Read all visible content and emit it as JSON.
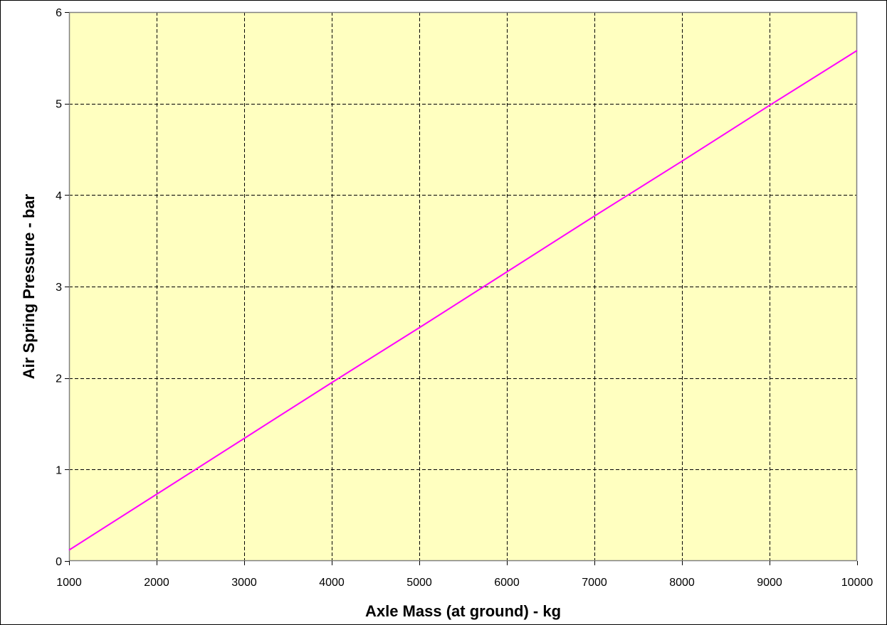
{
  "chart_data": {
    "type": "line",
    "title": "",
    "xlabel": "Axle Mass (at ground) - kg",
    "ylabel": "Air Spring Pressure - bar",
    "xlim": [
      1000,
      10000
    ],
    "ylim": [
      0,
      6
    ],
    "x_ticks": [
      1000,
      2000,
      3000,
      4000,
      5000,
      6000,
      7000,
      8000,
      9000,
      10000
    ],
    "y_ticks": [
      0,
      1,
      2,
      3,
      4,
      5,
      6
    ],
    "x_tick_labels": [
      "1000",
      "2000",
      "3000",
      "4000",
      "5000",
      "6000",
      "7000",
      "8000",
      "9000",
      "10000"
    ],
    "y_tick_labels": [
      "0",
      "1",
      "2",
      "3",
      "4",
      "5",
      "6"
    ],
    "grid": true,
    "grid_style": "dashed",
    "legend": "none",
    "series": [
      {
        "color": "#ff00ff",
        "x": [
          1000,
          2000,
          3000,
          4000,
          5000,
          6000,
          7000,
          8000,
          9000,
          10000
        ],
        "y": [
          0.12,
          0.73,
          1.34,
          1.95,
          2.55,
          3.16,
          3.77,
          4.37,
          4.98,
          5.58
        ]
      }
    ],
    "colors": {
      "plot_background": "#ffffc0",
      "grid": "#000000",
      "axis": "#808080",
      "line": "#ff00ff"
    }
  }
}
